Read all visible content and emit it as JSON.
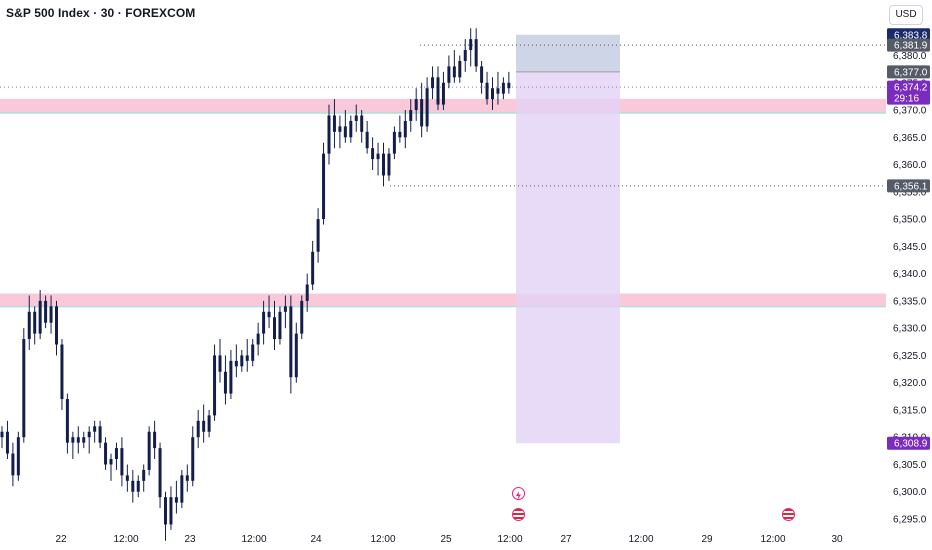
{
  "header": {
    "title": "S&P 500 Index · 30 · FOREXCOM",
    "currency": "USD"
  },
  "colors": {
    "candle": "#131f4a",
    "zone_fill": "#f8bbd0",
    "zone_edge": "#b2dfdb",
    "target_fill": "#c5cee3",
    "stop_fill": "#e2d2f5",
    "badge_dark": "#1a2b6d",
    "badge_gray": "#555b67",
    "badge_purple": "#7b2cbf",
    "event_pink": "#e91e8c"
  },
  "chart_data": {
    "type": "candlestick",
    "title": "S&P 500 Index · 30 · FOREXCOM",
    "y_axis": {
      "range": [
        6292,
        6386
      ],
      "ticks": [
        "6,295.0",
        "6,300.0",
        "6,305.0",
        "6,310.0",
        "6,315.0",
        "6,320.0",
        "6,325.0",
        "6,330.0",
        "6,335.0",
        "6,340.0",
        "6,345.0",
        "6,350.0",
        "6,355.0",
        "6,360.0",
        "6,365.0",
        "6,370.0",
        "6,375.0",
        "6,380.0"
      ]
    },
    "x_axis": {
      "ticks": [
        "22",
        "12:00",
        "23",
        "12:00",
        "24",
        "12:00",
        "25",
        "12:00",
        "27",
        "12:00",
        "29",
        "12:00",
        "30"
      ]
    },
    "key_levels": [
      {
        "label": "6,383.8",
        "value": 6383.8,
        "style": "dark"
      },
      {
        "label": "6,381.9",
        "value": 6381.9,
        "style": "gray",
        "line": "dotted"
      },
      {
        "label": "6,377.0",
        "value": 6377.0,
        "style": "gray"
      },
      {
        "label": "6,374.2",
        "value": 6374.2,
        "style": "purple",
        "countdown": "29:16",
        "line": "dotted"
      },
      {
        "label": "6,356.1",
        "value": 6356.1,
        "style": "gray",
        "line": "dotted"
      },
      {
        "label": "6,308.9",
        "value": 6308.9,
        "style": "purple"
      }
    ],
    "zones": [
      {
        "name": "supply",
        "from": 6370.0,
        "to": 6371.5
      },
      {
        "name": "support",
        "from": 6334.5,
        "to": 6335.8
      }
    ],
    "position_tool": {
      "direction": "short",
      "entry": 6377.0,
      "target": 6383.8,
      "stop": 6308.9
    },
    "current_price": 6374.2,
    "countdown": "29:16",
    "candles": [
      [
        6310,
        6312,
        6308,
        6311
      ],
      [
        6311,
        6313,
        6306,
        6307
      ],
      [
        6307,
        6309,
        6301,
        6303
      ],
      [
        6303,
        6311,
        6302,
        6310
      ],
      [
        6310,
        6330,
        6309,
        6328
      ],
      [
        6328,
        6336,
        6326,
        6333
      ],
      [
        6333,
        6334,
        6327,
        6329
      ],
      [
        6329,
        6337,
        6328,
        6335
      ],
      [
        6335,
        6336,
        6330,
        6331
      ],
      [
        6331,
        6336,
        6329,
        6334
      ],
      [
        6334,
        6335,
        6325,
        6327
      ],
      [
        6327,
        6328,
        6315,
        6317
      ],
      [
        6317,
        6318,
        6307,
        6309
      ],
      [
        6309,
        6311,
        6306,
        6310
      ],
      [
        6310,
        6312,
        6307,
        6309
      ],
      [
        6309,
        6311,
        6308,
        6310
      ],
      [
        6310,
        6312,
        6307,
        6311
      ],
      [
        6311,
        6313,
        6309,
        6312
      ],
      [
        6312,
        6313,
        6308,
        6309
      ],
      [
        6309,
        6310,
        6304,
        6305
      ],
      [
        6305,
        6307,
        6302,
        6306
      ],
      [
        6306,
        6309,
        6304,
        6308
      ],
      [
        6308,
        6310,
        6301,
        6303
      ],
      [
        6303,
        6305,
        6300,
        6302
      ],
      [
        6302,
        6304,
        6298,
        6300
      ],
      [
        6300,
        6303,
        6299,
        6302
      ],
      [
        6302,
        6305,
        6300,
        6304
      ],
      [
        6304,
        6312,
        6303,
        6311
      ],
      [
        6311,
        6313,
        6306,
        6308
      ],
      [
        6308,
        6309,
        6297,
        6299
      ],
      [
        6299,
        6300,
        6291,
        6294
      ],
      [
        6294,
        6301,
        6293,
        6299
      ],
      [
        6299,
        6302,
        6296,
        6298
      ],
      [
        6298,
        6304,
        6297,
        6303
      ],
      [
        6303,
        6305,
        6300,
        6302
      ],
      [
        6302,
        6312,
        6301,
        6310
      ],
      [
        6310,
        6315,
        6308,
        6313
      ],
      [
        6313,
        6316,
        6309,
        6311
      ],
      [
        6311,
        6315,
        6310,
        6314
      ],
      [
        6314,
        6327,
        6313,
        6325
      ],
      [
        6325,
        6328,
        6320,
        6322
      ],
      [
        6322,
        6325,
        6316,
        6318
      ],
      [
        6318,
        6326,
        6317,
        6324
      ],
      [
        6324,
        6327,
        6321,
        6323
      ],
      [
        6323,
        6326,
        6322,
        6325
      ],
      [
        6325,
        6328,
        6322,
        6324
      ],
      [
        6324,
        6328,
        6323,
        6327
      ],
      [
        6327,
        6331,
        6325,
        6329
      ],
      [
        6329,
        6335,
        6327,
        6333
      ],
      [
        6333,
        6336,
        6330,
        6332
      ],
      [
        6332,
        6335,
        6326,
        6328
      ],
      [
        6328,
        6334,
        6327,
        6333
      ],
      [
        6333,
        6336,
        6330,
        6334
      ],
      [
        6334,
        6336,
        6318,
        6321
      ],
      [
        6321,
        6331,
        6320,
        6329
      ],
      [
        6329,
        6336,
        6328,
        6335
      ],
      [
        6335,
        6340,
        6333,
        6338
      ],
      [
        6338,
        6346,
        6337,
        6344
      ],
      [
        6344,
        6352,
        6342,
        6350
      ],
      [
        6350,
        6364,
        6349,
        6362
      ],
      [
        6362,
        6371,
        6360,
        6369
      ],
      [
        6369,
        6372,
        6363,
        6366
      ],
      [
        6366,
        6369,
        6363,
        6367
      ],
      [
        6367,
        6370,
        6364,
        6365
      ],
      [
        6365,
        6369,
        6364,
        6368
      ],
      [
        6368,
        6371,
        6366,
        6369
      ],
      [
        6369,
        6370,
        6364,
        6366
      ],
      [
        6366,
        6368,
        6362,
        6363
      ],
      [
        6363,
        6365,
        6359,
        6361
      ],
      [
        6361,
        6364,
        6358,
        6362
      ],
      [
        6362,
        6364,
        6356,
        6358
      ],
      [
        6358,
        6363,
        6357,
        6362
      ],
      [
        6362,
        6367,
        6361,
        6366
      ],
      [
        6366,
        6369,
        6364,
        6365
      ],
      [
        6365,
        6370,
        6363,
        6368
      ],
      [
        6368,
        6372,
        6366,
        6370
      ],
      [
        6370,
        6374,
        6368,
        6372
      ],
      [
        6372,
        6375,
        6365,
        6367
      ],
      [
        6367,
        6376,
        6366,
        6374
      ],
      [
        6374,
        6378,
        6372,
        6376
      ],
      [
        6376,
        6378,
        6370,
        6371
      ],
      [
        6371,
        6377,
        6370,
        6375
      ],
      [
        6375,
        6380,
        6374,
        6378
      ],
      [
        6378,
        6381,
        6375,
        6376
      ],
      [
        6376,
        6380,
        6375,
        6379
      ],
      [
        6379,
        6383,
        6377,
        6381
      ],
      [
        6381,
        6385,
        6378,
        6383
      ],
      [
        6383,
        6385,
        6377,
        6378
      ],
      [
        6378,
        6379,
        6373,
        6375
      ],
      [
        6375,
        6377,
        6371,
        6372
      ],
      [
        6372,
        6376,
        6370,
        6374
      ],
      [
        6374,
        6377,
        6371,
        6373
      ],
      [
        6373,
        6376,
        6372,
        6375
      ],
      [
        6375,
        6377,
        6373,
        6374
      ]
    ]
  }
}
